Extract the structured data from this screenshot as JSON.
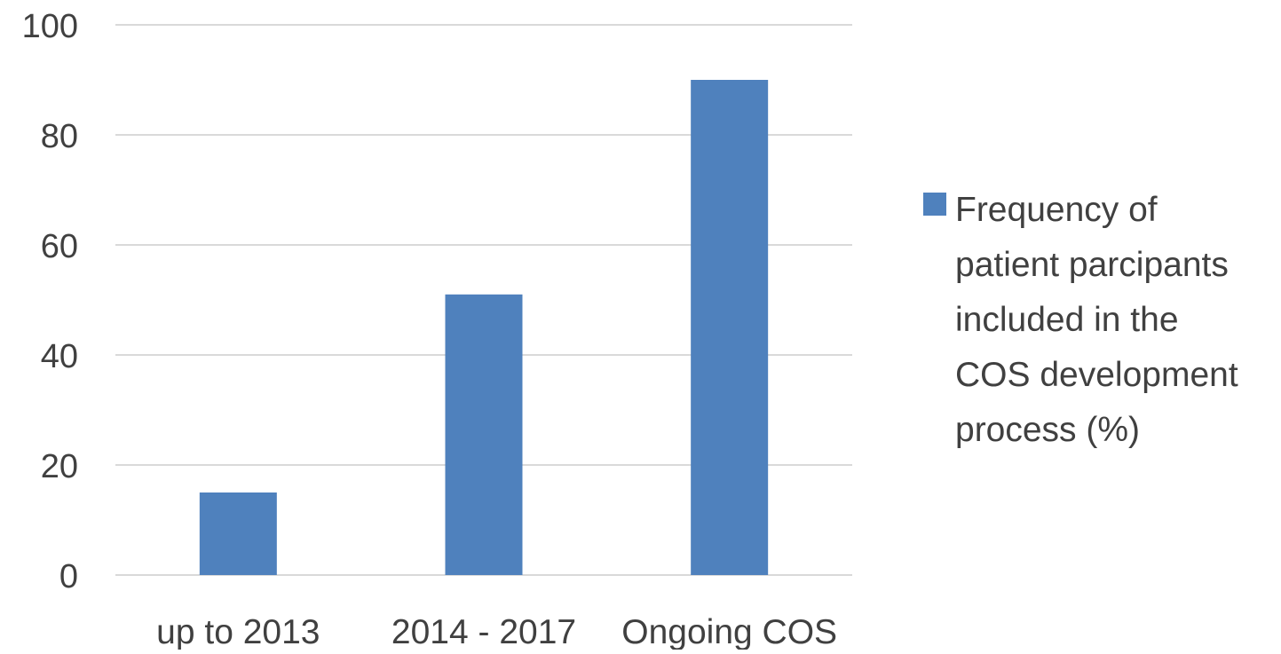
{
  "chart_data": {
    "type": "bar",
    "categories": [
      "up to 2013",
      "2014 - 2017",
      "Ongoing COS"
    ],
    "series": [
      {
        "name": "Frequency of\npatient parcipants\nincluded in the\nCOS development\nprocess (%)",
        "values": [
          15,
          51,
          90
        ],
        "color": "#4f81bd"
      }
    ],
    "title": "",
    "xlabel": "",
    "ylabel": "",
    "ylim": [
      0,
      100
    ],
    "yticks": [
      "0",
      "20",
      "40",
      "60",
      "80",
      "100"
    ],
    "grid": true,
    "legend_position": "right"
  },
  "colors": {
    "grid": "#d9d9d9",
    "text": "#404040"
  }
}
